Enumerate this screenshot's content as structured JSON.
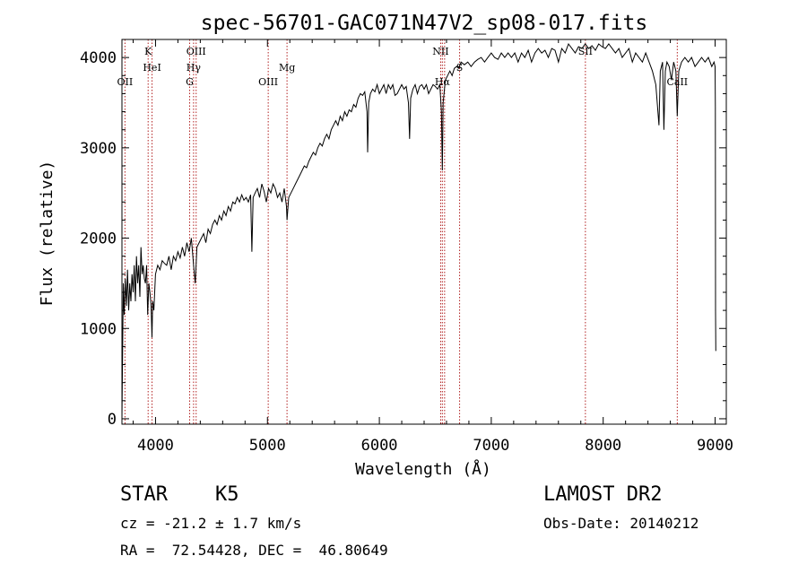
{
  "chart_data": {
    "type": "line",
    "title": "spec-56701-GAC071N47V2_sp08-017.fits",
    "xlabel": "Wavelength (Å)",
    "ylabel": "Flux (relative)",
    "xlim": [
      3700,
      9100
    ],
    "ylim": [
      -60,
      4200
    ],
    "x_ticks": [
      4000,
      5000,
      6000,
      7000,
      8000,
      9000
    ],
    "y_ticks": [
      0,
      1000,
      2000,
      3000,
      4000
    ],
    "grid": false,
    "series": [
      {
        "points": [
          [
            3700,
            0
          ],
          [
            3705,
            600
          ],
          [
            3712,
            1500
          ],
          [
            3720,
            1150
          ],
          [
            3730,
            1550
          ],
          [
            3740,
            1250
          ],
          [
            3750,
            1650
          ],
          [
            3760,
            1200
          ],
          [
            3770,
            1500
          ],
          [
            3780,
            1300
          ],
          [
            3790,
            1600
          ],
          [
            3800,
            1400
          ],
          [
            3810,
            1700
          ],
          [
            3820,
            1300
          ],
          [
            3830,
            1800
          ],
          [
            3840,
            1500
          ],
          [
            3850,
            1700
          ],
          [
            3860,
            1350
          ],
          [
            3870,
            1900
          ],
          [
            3880,
            1600
          ],
          [
            3890,
            1700
          ],
          [
            3900,
            1550
          ],
          [
            3910,
            1500
          ],
          [
            3920,
            1700
          ],
          [
            3930,
            1150
          ],
          [
            3940,
            1500
          ],
          [
            3950,
            1400
          ],
          [
            3960,
            1250
          ],
          [
            3968,
            900
          ],
          [
            3975,
            1300
          ],
          [
            3985,
            1200
          ],
          [
            4000,
            1600
          ],
          [
            4020,
            1700
          ],
          [
            4040,
            1650
          ],
          [
            4060,
            1750
          ],
          [
            4080,
            1720
          ],
          [
            4100,
            1700
          ],
          [
            4120,
            1800
          ],
          [
            4140,
            1650
          ],
          [
            4160,
            1800
          ],
          [
            4180,
            1750
          ],
          [
            4200,
            1850
          ],
          [
            4220,
            1780
          ],
          [
            4240,
            1900
          ],
          [
            4260,
            1800
          ],
          [
            4280,
            1950
          ],
          [
            4300,
            1850
          ],
          [
            4320,
            2000
          ],
          [
            4340,
            1700
          ],
          [
            4355,
            1500
          ],
          [
            4370,
            1900
          ],
          [
            4390,
            1950
          ],
          [
            4410,
            2000
          ],
          [
            4430,
            2050
          ],
          [
            4450,
            1950
          ],
          [
            4470,
            2100
          ],
          [
            4490,
            2050
          ],
          [
            4510,
            2150
          ],
          [
            4530,
            2200
          ],
          [
            4550,
            2150
          ],
          [
            4570,
            2250
          ],
          [
            4590,
            2200
          ],
          [
            4610,
            2300
          ],
          [
            4630,
            2250
          ],
          [
            4650,
            2350
          ],
          [
            4670,
            2300
          ],
          [
            4690,
            2400
          ],
          [
            4710,
            2380
          ],
          [
            4730,
            2450
          ],
          [
            4750,
            2400
          ],
          [
            4770,
            2480
          ],
          [
            4790,
            2420
          ],
          [
            4810,
            2450
          ],
          [
            4830,
            2400
          ],
          [
            4850,
            2480
          ],
          [
            4861,
            1850
          ],
          [
            4872,
            2450
          ],
          [
            4890,
            2500
          ],
          [
            4910,
            2550
          ],
          [
            4930,
            2450
          ],
          [
            4950,
            2600
          ],
          [
            4970,
            2520
          ],
          [
            4990,
            2400
          ],
          [
            5010,
            2550
          ],
          [
            5030,
            2500
          ],
          [
            5050,
            2600
          ],
          [
            5070,
            2550
          ],
          [
            5090,
            2450
          ],
          [
            5110,
            2500
          ],
          [
            5130,
            2400
          ],
          [
            5150,
            2550
          ],
          [
            5170,
            2350
          ],
          [
            5175,
            2200
          ],
          [
            5190,
            2450
          ],
          [
            5210,
            2500
          ],
          [
            5230,
            2550
          ],
          [
            5250,
            2600
          ],
          [
            5270,
            2650
          ],
          [
            5290,
            2700
          ],
          [
            5310,
            2750
          ],
          [
            5330,
            2800
          ],
          [
            5350,
            2780
          ],
          [
            5370,
            2850
          ],
          [
            5390,
            2900
          ],
          [
            5410,
            2950
          ],
          [
            5430,
            2920
          ],
          [
            5450,
            3000
          ],
          [
            5470,
            3050
          ],
          [
            5490,
            3020
          ],
          [
            5510,
            3100
          ],
          [
            5530,
            3150
          ],
          [
            5550,
            3100
          ],
          [
            5570,
            3200
          ],
          [
            5590,
            3250
          ],
          [
            5610,
            3300
          ],
          [
            5630,
            3250
          ],
          [
            5650,
            3350
          ],
          [
            5670,
            3300
          ],
          [
            5690,
            3400
          ],
          [
            5710,
            3350
          ],
          [
            5730,
            3420
          ],
          [
            5750,
            3400
          ],
          [
            5770,
            3480
          ],
          [
            5790,
            3450
          ],
          [
            5810,
            3550
          ],
          [
            5830,
            3600
          ],
          [
            5850,
            3580
          ],
          [
            5870,
            3620
          ],
          [
            5890,
            3400
          ],
          [
            5895,
            2950
          ],
          [
            5905,
            3500
          ],
          [
            5920,
            3600
          ],
          [
            5940,
            3650
          ],
          [
            5960,
            3620
          ],
          [
            5980,
            3700
          ],
          [
            6000,
            3600
          ],
          [
            6020,
            3650
          ],
          [
            6040,
            3700
          ],
          [
            6060,
            3600
          ],
          [
            6080,
            3700
          ],
          [
            6100,
            3650
          ],
          [
            6120,
            3700
          ],
          [
            6140,
            3580
          ],
          [
            6160,
            3600
          ],
          [
            6180,
            3650
          ],
          [
            6200,
            3700
          ],
          [
            6220,
            3650
          ],
          [
            6240,
            3680
          ],
          [
            6260,
            3500
          ],
          [
            6270,
            3100
          ],
          [
            6280,
            3550
          ],
          [
            6300,
            3650
          ],
          [
            6320,
            3700
          ],
          [
            6340,
            3600
          ],
          [
            6360,
            3680
          ],
          [
            6380,
            3700
          ],
          [
            6400,
            3650
          ],
          [
            6420,
            3700
          ],
          [
            6440,
            3600
          ],
          [
            6460,
            3650
          ],
          [
            6480,
            3700
          ],
          [
            6500,
            3680
          ],
          [
            6520,
            3650
          ],
          [
            6540,
            3700
          ],
          [
            6555,
            3400
          ],
          [
            6563,
            2750
          ],
          [
            6570,
            3500
          ],
          [
            6590,
            3750
          ],
          [
            6610,
            3800
          ],
          [
            6630,
            3850
          ],
          [
            6650,
            3800
          ],
          [
            6670,
            3880
          ],
          [
            6690,
            3900
          ],
          [
            6710,
            3880
          ],
          [
            6730,
            3950
          ],
          [
            6760,
            3920
          ],
          [
            6790,
            3950
          ],
          [
            6820,
            3900
          ],
          [
            6850,
            3950
          ],
          [
            6880,
            3980
          ],
          [
            6910,
            4000
          ],
          [
            6940,
            3950
          ],
          [
            6970,
            4000
          ],
          [
            7000,
            4050
          ],
          [
            7030,
            4000
          ],
          [
            7060,
            3980
          ],
          [
            7090,
            4050
          ],
          [
            7120,
            4000
          ],
          [
            7150,
            4050
          ],
          [
            7180,
            4000
          ],
          [
            7210,
            4050
          ],
          [
            7240,
            3950
          ],
          [
            7270,
            4050
          ],
          [
            7300,
            4000
          ],
          [
            7330,
            4080
          ],
          [
            7360,
            3950
          ],
          [
            7390,
            4050
          ],
          [
            7420,
            4100
          ],
          [
            7450,
            4050
          ],
          [
            7480,
            4080
          ],
          [
            7510,
            4000
          ],
          [
            7540,
            4100
          ],
          [
            7570,
            4080
          ],
          [
            7600,
            3950
          ],
          [
            7630,
            4100
          ],
          [
            7660,
            4050
          ],
          [
            7690,
            4150
          ],
          [
            7720,
            4100
          ],
          [
            7750,
            4050
          ],
          [
            7780,
            4120
          ],
          [
            7810,
            4100
          ],
          [
            7840,
            4150
          ],
          [
            7870,
            4100
          ],
          [
            7900,
            4130
          ],
          [
            7930,
            4080
          ],
          [
            7960,
            4150
          ],
          [
            7990,
            4120
          ],
          [
            8020,
            4100
          ],
          [
            8050,
            4150
          ],
          [
            8080,
            4100
          ],
          [
            8110,
            4050
          ],
          [
            8140,
            4100
          ],
          [
            8170,
            4000
          ],
          [
            8200,
            4050
          ],
          [
            8230,
            4100
          ],
          [
            8260,
            3950
          ],
          [
            8290,
            4050
          ],
          [
            8320,
            4000
          ],
          [
            8350,
            3950
          ],
          [
            8380,
            4050
          ],
          [
            8410,
            3950
          ],
          [
            8440,
            3850
          ],
          [
            8470,
            3700
          ],
          [
            8498,
            3250
          ],
          [
            8510,
            3850
          ],
          [
            8530,
            3950
          ],
          [
            8542,
            3200
          ],
          [
            8555,
            3850
          ],
          [
            8570,
            3950
          ],
          [
            8590,
            3900
          ],
          [
            8610,
            3750
          ],
          [
            8630,
            3950
          ],
          [
            8650,
            3850
          ],
          [
            8662,
            3350
          ],
          [
            8675,
            3850
          ],
          [
            8700,
            3950
          ],
          [
            8730,
            4000
          ],
          [
            8760,
            3950
          ],
          [
            8790,
            4000
          ],
          [
            8820,
            3900
          ],
          [
            8850,
            3950
          ],
          [
            8880,
            4000
          ],
          [
            8910,
            3950
          ],
          [
            8940,
            4000
          ],
          [
            8970,
            3900
          ],
          [
            8990,
            3950
          ],
          [
            9000,
            3900
          ],
          [
            9002,
            3450
          ],
          [
            9004,
            1200
          ],
          [
            9006,
            750
          ]
        ]
      }
    ],
    "lines": [
      {
        "label": "OII",
        "x": 3727,
        "row": 3
      },
      {
        "label": "K",
        "x": 3934,
        "row": 1
      },
      {
        "label": "HeI",
        "x": 3969,
        "row": 2
      },
      {
        "label": "G",
        "x": 4305,
        "row": 3
      },
      {
        "label": "OIII",
        "x": 4363,
        "row": 1
      },
      {
        "label": "Hγ",
        "x": 4340,
        "row": 2
      },
      {
        "label": "OIII",
        "x": 5007,
        "row": 3
      },
      {
        "label": "Mg",
        "x": 5175,
        "row": 2
      },
      {
        "label": "NII",
        "x": 6548,
        "row": 1
      },
      {
        "label": "Hα",
        "x": 6563,
        "row": 3
      },
      {
        "label": "",
        "x": 6583,
        "row": 0
      },
      {
        "label": "S",
        "x": 6717,
        "row": 2
      },
      {
        "label": "SII",
        "x": 7841,
        "row": 1
      },
      {
        "label": "CaII",
        "x": 8662,
        "row": 3
      }
    ]
  },
  "info": {
    "object_class": "STAR",
    "subclass": "K5",
    "survey": "LAMOST DR2",
    "redshift": "cz = -21.2 ± 1.7 km/s",
    "obs_date": "Obs-Date: 20140212",
    "coords": "RA =  72.54428, DEC =  46.80649"
  }
}
